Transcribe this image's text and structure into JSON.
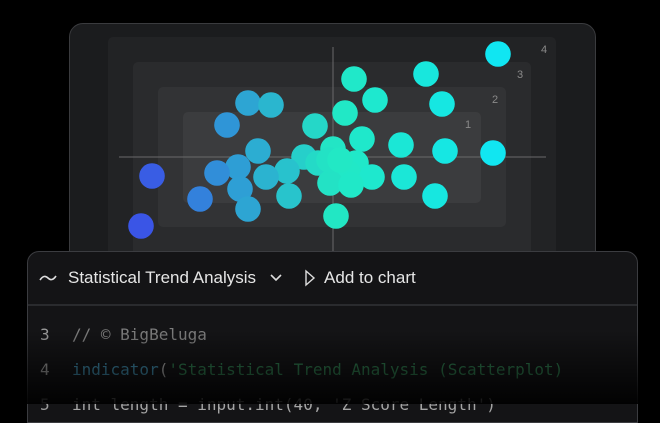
{
  "chart_data": {
    "type": "scatter",
    "grid": false,
    "level_labels": [
      "1",
      "2",
      "3",
      "4"
    ],
    "colors": {
      "low": "#3a55e6",
      "mid": "#22e8c4",
      "high": "#10e6f2"
    },
    "points": [
      {
        "x": 3.3,
        "y": 2.06
      },
      {
        "x": 1.86,
        "y": 1.66
      },
      {
        "x": 0.42,
        "y": 1.56
      },
      {
        "x": 0.84,
        "y": 1.14
      },
      {
        "x": 2.18,
        "y": 1.06
      },
      {
        "x": -1.7,
        "y": 1.08
      },
      {
        "x": -1.24,
        "y": 1.04
      },
      {
        "x": 0.24,
        "y": 0.88
      },
      {
        "x": -2.12,
        "y": 0.64
      },
      {
        "x": -0.36,
        "y": 0.62
      },
      {
        "x": 0.58,
        "y": 0.36
      },
      {
        "x": 1.36,
        "y": 0.24
      },
      {
        "x": 2.24,
        "y": 0.12
      },
      {
        "x": 3.2,
        "y": 0.08
      },
      {
        "x": -1.5,
        "y": 0.12
      },
      {
        "x": 0.0,
        "y": 0.16
      },
      {
        "x": -0.58,
        "y": 0.0
      },
      {
        "x": -0.3,
        "y": -0.12
      },
      {
        "x": -1.9,
        "y": -0.2
      },
      {
        "x": -2.32,
        "y": -0.32
      },
      {
        "x": -0.92,
        "y": -0.28
      },
      {
        "x": -1.34,
        "y": -0.4
      },
      {
        "x": 0.46,
        "y": -0.12
      },
      {
        "x": 0.3,
        "y": -0.32
      },
      {
        "x": 0.78,
        "y": -0.4
      },
      {
        "x": 1.42,
        "y": -0.4
      },
      {
        "x": -3.62,
        "y": -0.38
      },
      {
        "x": -1.86,
        "y": -0.64
      },
      {
        "x": -0.06,
        "y": -0.52
      },
      {
        "x": 0.36,
        "y": -0.56
      },
      {
        "x": -2.66,
        "y": -0.84
      },
      {
        "x": -0.88,
        "y": -0.78
      },
      {
        "x": 2.04,
        "y": -0.78
      },
      {
        "x": -1.7,
        "y": -1.04
      },
      {
        "x": 0.06,
        "y": -1.18
      },
      {
        "x": -3.84,
        "y": -1.38
      },
      {
        "x": -0.08,
        "y": -0.06
      },
      {
        "x": 0.14,
        "y": -0.06
      }
    ]
  },
  "panel": {
    "trend_icon": "trend-line-icon",
    "title": "Statistical Trend Analysis",
    "dropdown_icon": "chevron-down-icon",
    "add_icon": "play-outline-icon",
    "add_label": "Add to chart",
    "code": [
      {
        "line": "3",
        "comment": "// © BigBeluga"
      },
      {
        "line": "4",
        "fn": "indicator",
        "paren": "(",
        "str": "'Statistical Trend Analysis (Scatterplot)"
      },
      {
        "line": "5",
        "plain": "int length = input.int(40, 'Z Score Length')"
      }
    ]
  }
}
